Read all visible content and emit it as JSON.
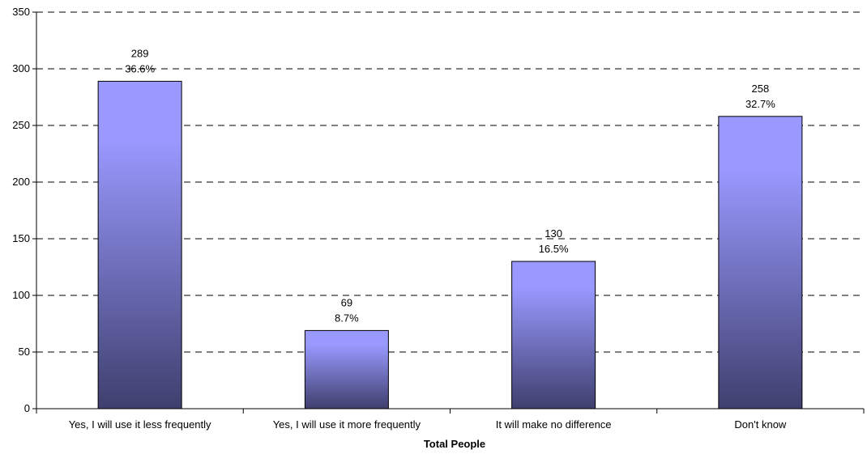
{
  "chart_data": {
    "type": "bar",
    "categories": [
      "Yes, I will use it less frequently",
      "Yes, I will use it more frequently",
      "It will make no difference",
      "Don't know"
    ],
    "values": [
      289,
      69,
      130,
      258
    ],
    "value_labels": [
      "289",
      "69",
      "130",
      "258"
    ],
    "percent_labels": [
      "36.6%",
      "8.7%",
      "16.5%",
      "32.7%"
    ],
    "title": "",
    "xlabel": "Total People",
    "ylabel": "",
    "ylim": [
      0,
      350
    ],
    "yticks": [
      0,
      50,
      100,
      150,
      200,
      250,
      300,
      350
    ],
    "ytick_labels": [
      "0",
      "50",
      "100",
      "150",
      "200",
      "250",
      "300",
      "350"
    ],
    "grid": true,
    "grid_style": "dashed",
    "legend": "none",
    "colors": {
      "bar_top": "#9999ff",
      "bar_bottom": "#3f3f6e",
      "bar_stroke": "#000000",
      "grid": "#000000",
      "axis": "#000000"
    }
  }
}
